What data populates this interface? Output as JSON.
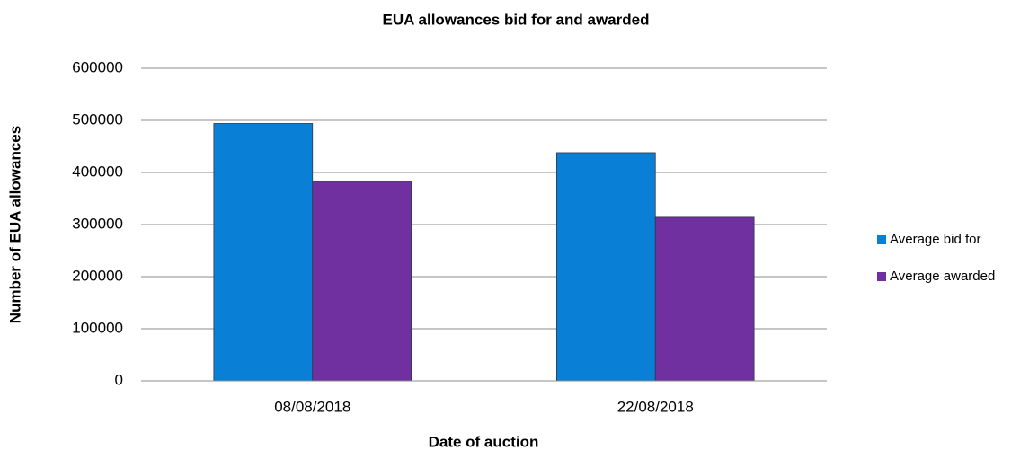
{
  "chart_data": {
    "type": "bar",
    "title": "EUA allowances bid for and awarded",
    "x_label": "Date of auction",
    "y_label": "Number of EUA allowances",
    "categories": [
      "08/08/2018",
      "22/08/2018"
    ],
    "series": [
      {
        "name": "Average bid for",
        "color": "#0a7fd6",
        "values": [
          494000,
          438000
        ]
      },
      {
        "name": "Average awarded",
        "color": "#7030a0",
        "values": [
          383000,
          314000
        ]
      }
    ],
    "ylim": [
      0,
      600000
    ],
    "yticks": [
      0,
      100000,
      200000,
      300000,
      400000,
      500000,
      600000
    ],
    "grid": true,
    "legend": "right"
  }
}
